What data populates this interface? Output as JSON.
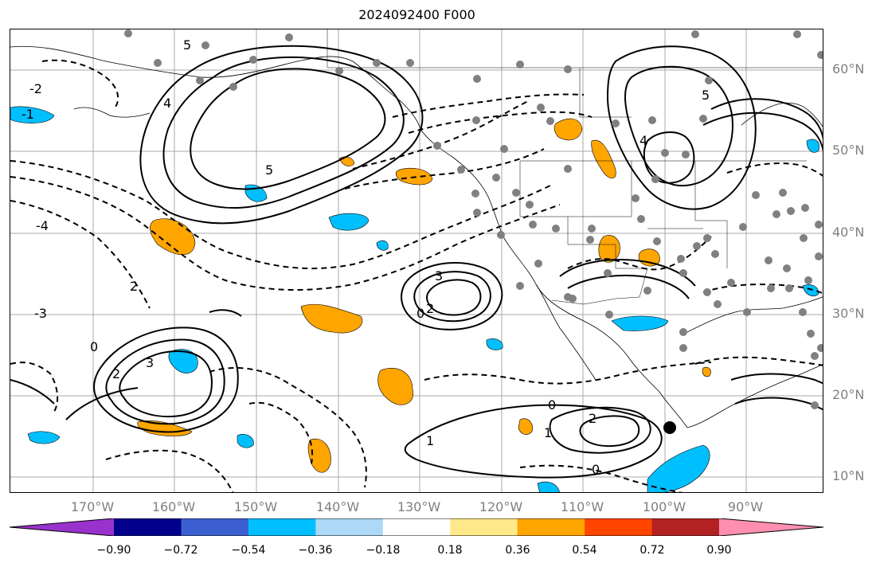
{
  "title": "2024092400 F000",
  "lat_labels": [
    "60°N",
    "50°N",
    "40°N",
    "30°N",
    "20°N",
    "10°N"
  ],
  "lon_labels": [
    "170°W",
    "160°W",
    "150°W",
    "140°W",
    "130°W",
    "120°W",
    "110°W",
    "100°W",
    "90°W"
  ],
  "contour_labels": [
    "-4",
    "-3",
    "-2",
    "-1",
    "0",
    "1",
    "2",
    "3",
    "4",
    "5"
  ],
  "colorbar": {
    "ticks": [
      "−0.90",
      "−0.72",
      "−0.54",
      "−0.36",
      "−0.18",
      "0.18",
      "0.36",
      "0.54",
      "0.72",
      "0.90"
    ],
    "colors": [
      "#9932cc",
      "#00008b",
      "#3b5fcf",
      "#00bfff",
      "#add8f6",
      "#ffffff",
      "#ffe98a",
      "#ffa500",
      "#ff4500",
      "#b22222",
      "#ff8fb0"
    ]
  },
  "colors": {
    "positive_fill": "#ffa500",
    "negative_fill": "#00bfff",
    "station_marker": "#808080",
    "contour": "#000000"
  }
}
